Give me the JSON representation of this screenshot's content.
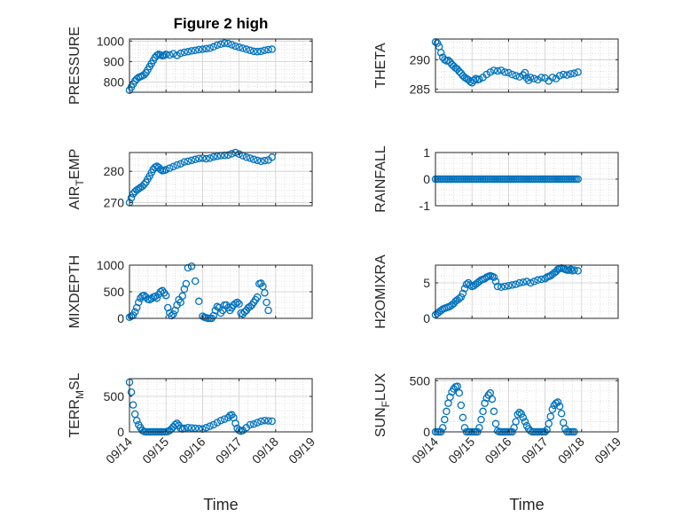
{
  "chart_data": [
    {
      "panel": 1,
      "type": "scatter",
      "title": "Figure 2 high",
      "ylabel": "PRESSURE",
      "xlabel": "",
      "ylim": [
        750,
        1010
      ],
      "yticks": [
        800,
        900,
        1000
      ],
      "xticks": [
        "09/14",
        "09/15",
        "09/16",
        "09/17",
        "09/18",
        "09/19"
      ],
      "show_xticklabels": false,
      "x": [
        0.0,
        0.05,
        0.1,
        0.15,
        0.2,
        0.25,
        0.3,
        0.35,
        0.4,
        0.45,
        0.5,
        0.55,
        0.6,
        0.65,
        0.7,
        0.75,
        0.8,
        0.85,
        0.9,
        0.95,
        1.0,
        1.1,
        1.2,
        1.3,
        1.4,
        1.5,
        1.6,
        1.7,
        1.8,
        1.9,
        2.0,
        2.1,
        2.2,
        2.3,
        2.4,
        2.5,
        2.6,
        2.7,
        2.8,
        2.9,
        3.0,
        3.1,
        3.2,
        3.3,
        3.4,
        3.5,
        3.6,
        3.7,
        3.8,
        3.9
      ],
      "y": [
        760,
        775,
        790,
        805,
        815,
        822,
        826,
        830,
        835,
        845,
        860,
        875,
        890,
        905,
        920,
        930,
        935,
        932,
        928,
        930,
        935,
        932,
        938,
        930,
        940,
        945,
        948,
        952,
        955,
        958,
        960,
        963,
        965,
        972,
        980,
        985,
        990,
        988,
        982,
        975,
        970,
        965,
        960,
        955,
        950,
        948,
        950,
        955,
        958,
        960
      ]
    },
    {
      "panel": 2,
      "type": "scatter",
      "title": "",
      "ylabel": "THETA",
      "xlabel": "",
      "ylim": [
        284.5,
        293.5
      ],
      "yticks": [
        285,
        290
      ],
      "xticks": [
        "09/14",
        "09/15",
        "09/16",
        "09/17",
        "09/18",
        "09/19"
      ],
      "show_xticklabels": false,
      "x": [
        0.0,
        0.05,
        0.1,
        0.15,
        0.2,
        0.25,
        0.3,
        0.35,
        0.4,
        0.45,
        0.5,
        0.55,
        0.6,
        0.65,
        0.7,
        0.75,
        0.8,
        0.85,
        0.9,
        0.95,
        1.0,
        1.05,
        1.1,
        1.15,
        1.2,
        1.3,
        1.4,
        1.5,
        1.6,
        1.7,
        1.8,
        1.9,
        2.0,
        2.1,
        2.2,
        2.3,
        2.4,
        2.45,
        2.5,
        2.55,
        2.6,
        2.7,
        2.8,
        2.9,
        3.0,
        3.1,
        3.2,
        3.3,
        3.4,
        3.5,
        3.6,
        3.7,
        3.8,
        3.9
      ],
      "y": [
        293,
        292.8,
        292.2,
        291.2,
        290.4,
        290,
        289.8,
        289.9,
        289.6,
        289.2,
        288.9,
        288.6,
        288.4,
        288,
        287.7,
        287.3,
        287,
        286.8,
        286.6,
        286.3,
        286.1,
        286.5,
        286.8,
        286.6,
        286.7,
        287,
        287.5,
        287.9,
        288.2,
        288.1,
        288.2,
        287.9,
        287.8,
        287.5,
        287.3,
        287.1,
        287.4,
        287.8,
        286.9,
        286.5,
        287,
        286.8,
        286.6,
        287,
        286.9,
        286.4,
        287,
        286.8,
        287.3,
        287.5,
        287.4,
        287.6,
        287.7,
        287.9
      ]
    },
    {
      "panel": 3,
      "type": "scatter",
      "title": "",
      "ylabel": "AIR_TEMP",
      "ylabel_parts": {
        "base": "AIR",
        "sub": "T",
        "rest": "EMP"
      },
      "xlabel": "",
      "ylim": [
        269,
        286
      ],
      "yticks": [
        270,
        280
      ],
      "xticks": [
        "09/14",
        "09/15",
        "09/16",
        "09/17",
        "09/18",
        "09/19"
      ],
      "show_xticklabels": false,
      "x": [
        0.0,
        0.05,
        0.1,
        0.15,
        0.2,
        0.25,
        0.3,
        0.35,
        0.4,
        0.45,
        0.5,
        0.55,
        0.6,
        0.65,
        0.7,
        0.75,
        0.8,
        0.85,
        0.9,
        0.95,
        1.0,
        1.1,
        1.2,
        1.3,
        1.4,
        1.5,
        1.6,
        1.7,
        1.8,
        1.9,
        2.0,
        2.1,
        2.2,
        2.3,
        2.4,
        2.5,
        2.6,
        2.7,
        2.8,
        2.9,
        3.0,
        3.1,
        3.2,
        3.3,
        3.4,
        3.5,
        3.6,
        3.7,
        3.8,
        3.9
      ],
      "y": [
        270,
        271.5,
        272.8,
        273.5,
        274,
        274.4,
        274.8,
        275.2,
        275.8,
        276.5,
        277.5,
        278.5,
        279.6,
        280.6,
        281.3,
        281.6,
        281.2,
        280.6,
        280.2,
        280.3,
        280.5,
        281,
        281.5,
        282,
        282.4,
        283,
        283.2,
        283.5,
        283.8,
        284.1,
        284.2,
        284,
        284.2,
        284.6,
        284.8,
        285,
        285.1,
        285.2,
        285.6,
        286,
        285.5,
        285,
        284.5,
        284.2,
        283.8,
        283.5,
        283.2,
        283.4,
        283.6,
        284.5
      ]
    },
    {
      "panel": 4,
      "type": "scatter",
      "title": "",
      "ylabel": "RAINFALL",
      "xlabel": "",
      "ylim": [
        -1,
        1
      ],
      "yticks": [
        -1,
        0,
        1
      ],
      "xticks": [
        "09/14",
        "09/15",
        "09/16",
        "09/17",
        "09/18",
        "09/19"
      ],
      "show_xticklabels": false,
      "x": [
        0.0,
        0.05,
        0.1,
        0.15,
        0.2,
        0.25,
        0.3,
        0.35,
        0.4,
        0.45,
        0.5,
        0.55,
        0.6,
        0.65,
        0.7,
        0.75,
        0.8,
        0.85,
        0.9,
        0.95,
        1.0,
        1.05,
        1.1,
        1.15,
        1.2,
        1.25,
        1.3,
        1.35,
        1.4,
        1.45,
        1.5,
        1.55,
        1.6,
        1.65,
        1.7,
        1.75,
        1.8,
        1.85,
        1.9,
        1.95,
        2.0,
        2.05,
        2.1,
        2.15,
        2.2,
        2.25,
        2.3,
        2.35,
        2.4,
        2.45,
        2.5,
        2.55,
        2.6,
        2.65,
        2.7,
        2.75,
        2.8,
        2.85,
        2.9,
        2.95,
        3.0,
        3.05,
        3.1,
        3.15,
        3.2,
        3.25,
        3.3,
        3.35,
        3.4,
        3.45,
        3.5,
        3.55,
        3.6,
        3.65,
        3.7,
        3.75,
        3.8,
        3.85,
        3.9
      ],
      "y": [
        0,
        0,
        0,
        0,
        0,
        0,
        0,
        0,
        0,
        0,
        0,
        0,
        0,
        0,
        0,
        0,
        0,
        0,
        0,
        0,
        0,
        0,
        0,
        0,
        0,
        0,
        0,
        0,
        0,
        0,
        0,
        0,
        0,
        0,
        0,
        0,
        0,
        0,
        0,
        0,
        0,
        0,
        0,
        0,
        0,
        0,
        0,
        0,
        0,
        0,
        0,
        0,
        0,
        0,
        0,
        0,
        0,
        0,
        0,
        0,
        0,
        0,
        0,
        0,
        0,
        0,
        0,
        0,
        0,
        0,
        0,
        0,
        0,
        0,
        0,
        0,
        0,
        0,
        0
      ]
    },
    {
      "panel": 5,
      "type": "scatter",
      "title": "",
      "ylabel": "MIXDEPTH",
      "xlabel": "",
      "ylim": [
        0,
        1000
      ],
      "yticks": [
        0,
        500,
        1000
      ],
      "xticks": [
        "09/14",
        "09/15",
        "09/16",
        "09/17",
        "09/18",
        "09/19"
      ],
      "show_xticklabels": false,
      "x": [
        0.0,
        0.05,
        0.1,
        0.15,
        0.2,
        0.25,
        0.3,
        0.35,
        0.4,
        0.45,
        0.5,
        0.55,
        0.6,
        0.65,
        0.7,
        0.75,
        0.8,
        0.85,
        0.9,
        0.95,
        1.0,
        1.05,
        1.1,
        1.15,
        1.2,
        1.25,
        1.3,
        1.35,
        1.4,
        1.45,
        1.5,
        1.55,
        1.6,
        1.7,
        1.8,
        1.9,
        2.0,
        2.05,
        2.1,
        2.15,
        2.2,
        2.25,
        2.3,
        2.35,
        2.4,
        2.45,
        2.5,
        2.55,
        2.6,
        2.65,
        2.7,
        2.75,
        2.8,
        2.85,
        2.9,
        2.95,
        3.0,
        3.05,
        3.1,
        3.15,
        3.2,
        3.25,
        3.3,
        3.35,
        3.4,
        3.45,
        3.5,
        3.55,
        3.6,
        3.65,
        3.7,
        3.75,
        3.8
      ],
      "y": [
        20,
        40,
        60,
        120,
        200,
        300,
        380,
        420,
        430,
        400,
        360,
        350,
        370,
        400,
        410,
        380,
        450,
        500,
        520,
        480,
        430,
        200,
        100,
        50,
        80,
        150,
        250,
        350,
        300,
        420,
        550,
        650,
        950,
        980,
        700,
        320,
        40,
        20,
        10,
        0,
        0,
        0,
        50,
        150,
        220,
        200,
        100,
        150,
        250,
        250,
        200,
        150,
        200,
        250,
        280,
        300,
        270,
        100,
        80,
        120,
        150,
        200,
        220,
        250,
        300,
        350,
        400,
        650,
        660,
        600,
        480,
        300,
        150
      ]
    },
    {
      "panel": 6,
      "type": "scatter",
      "title": "",
      "ylabel": "H2OMIXRA",
      "xlabel": "",
      "ylim": [
        0,
        7.5
      ],
      "yticks": [
        0,
        5
      ],
      "xticks": [
        "09/14",
        "09/15",
        "09/16",
        "09/17",
        "09/18",
        "09/19"
      ],
      "show_xticklabels": false,
      "x": [
        0.0,
        0.05,
        0.1,
        0.15,
        0.2,
        0.25,
        0.3,
        0.35,
        0.4,
        0.45,
        0.5,
        0.55,
        0.6,
        0.65,
        0.7,
        0.75,
        0.8,
        0.85,
        0.9,
        0.95,
        1.0,
        1.05,
        1.1,
        1.15,
        1.2,
        1.25,
        1.3,
        1.35,
        1.4,
        1.45,
        1.5,
        1.55,
        1.6,
        1.65,
        1.7,
        1.8,
        1.9,
        2.0,
        2.1,
        2.2,
        2.3,
        2.4,
        2.5,
        2.6,
        2.7,
        2.8,
        2.9,
        3.0,
        3.05,
        3.1,
        3.15,
        3.2,
        3.25,
        3.3,
        3.35,
        3.4,
        3.45,
        3.5,
        3.55,
        3.6,
        3.65,
        3.7,
        3.75,
        3.8,
        3.9
      ],
      "y": [
        0.5,
        0.7,
        0.9,
        1.1,
        1.3,
        1.4,
        1.5,
        1.6,
        1.7,
        1.9,
        2.1,
        2.4,
        2.6,
        2.8,
        3.0,
        3.5,
        4.2,
        4.8,
        5.0,
        4.7,
        4.5,
        4.6,
        4.8,
        5.0,
        5.2,
        5.4,
        5.5,
        5.6,
        5.8,
        5.9,
        6.0,
        5.9,
        5.8,
        5.2,
        4.5,
        4.4,
        4.5,
        4.6,
        4.7,
        4.8,
        5.0,
        5.1,
        5.2,
        5.0,
        5.2,
        5.4,
        5.5,
        5.6,
        5.8,
        5.9,
        6.0,
        6.2,
        6.4,
        6.6,
        6.9,
        7.0,
        7.1,
        7.0,
        6.9,
        6.8,
        6.8,
        6.9,
        6.7,
        6.8,
        6.7
      ]
    },
    {
      "panel": 7,
      "type": "scatter",
      "title": "",
      "ylabel": "TERR_MSL",
      "ylabel_parts": {
        "base": "TERR",
        "sub": "M",
        "rest": "SL"
      },
      "xlabel": "Time",
      "ylim": [
        0,
        750
      ],
      "yticks": [
        0,
        500
      ],
      "xticks": [
        "09/14",
        "09/15",
        "09/16",
        "09/17",
        "09/18",
        "09/19"
      ],
      "show_xticklabels": true,
      "x": [
        0.0,
        0.05,
        0.1,
        0.15,
        0.2,
        0.25,
        0.3,
        0.35,
        0.4,
        0.45,
        0.5,
        0.55,
        0.6,
        0.65,
        0.7,
        0.75,
        0.8,
        0.85,
        0.9,
        0.95,
        1.0,
        1.05,
        1.1,
        1.15,
        1.2,
        1.25,
        1.3,
        1.35,
        1.4,
        1.45,
        1.5,
        1.6,
        1.7,
        1.8,
        1.9,
        2.0,
        2.1,
        2.2,
        2.3,
        2.4,
        2.5,
        2.6,
        2.7,
        2.75,
        2.8,
        2.85,
        2.9,
        2.95,
        3.0,
        3.05,
        3.1,
        3.2,
        3.3,
        3.4,
        3.5,
        3.6,
        3.7,
        3.8,
        3.9
      ],
      "y": [
        700,
        560,
        380,
        250,
        160,
        100,
        60,
        20,
        5,
        0,
        0,
        0,
        0,
        0,
        0,
        0,
        0,
        0,
        0,
        0,
        0,
        5,
        20,
        40,
        70,
        100,
        120,
        90,
        50,
        40,
        50,
        60,
        55,
        50,
        45,
        40,
        60,
        80,
        100,
        130,
        160,
        180,
        200,
        230,
        240,
        200,
        120,
        50,
        20,
        10,
        20,
        60,
        100,
        110,
        130,
        150,
        160,
        155,
        150
      ]
    },
    {
      "panel": 8,
      "type": "scatter",
      "title": "",
      "ylabel": "SUN_FLUX",
      "ylabel_parts": {
        "base": "SUN",
        "sub": "F",
        "rest": "LUX"
      },
      "xlabel": "Time",
      "ylim": [
        0,
        520
      ],
      "yticks": [
        0,
        500
      ],
      "xticks": [
        "09/14",
        "09/15",
        "09/16",
        "09/17",
        "09/18",
        "09/19"
      ],
      "show_xticklabels": true,
      "x": [
        0.0,
        0.05,
        0.1,
        0.15,
        0.2,
        0.25,
        0.3,
        0.35,
        0.4,
        0.45,
        0.5,
        0.55,
        0.6,
        0.65,
        0.7,
        0.75,
        0.8,
        0.85,
        0.9,
        0.95,
        1.0,
        1.05,
        1.1,
        1.15,
        1.2,
        1.25,
        1.3,
        1.35,
        1.4,
        1.45,
        1.5,
        1.55,
        1.6,
        1.65,
        1.7,
        1.75,
        1.8,
        1.85,
        1.9,
        1.95,
        2.0,
        2.05,
        2.1,
        2.15,
        2.2,
        2.25,
        2.3,
        2.35,
        2.4,
        2.45,
        2.5,
        2.55,
        2.6,
        2.65,
        2.7,
        2.75,
        2.8,
        2.85,
        2.9,
        2.95,
        3.0,
        3.05,
        3.1,
        3.15,
        3.2,
        3.25,
        3.3,
        3.35,
        3.4,
        3.45,
        3.5,
        3.55,
        3.6,
        3.65,
        3.7,
        3.75,
        3.8
      ],
      "y": [
        0,
        0,
        0,
        0,
        40,
        120,
        200,
        280,
        340,
        390,
        420,
        440,
        445,
        380,
        260,
        140,
        40,
        0,
        0,
        0,
        0,
        0,
        0,
        0,
        40,
        120,
        200,
        280,
        330,
        360,
        380,
        320,
        200,
        80,
        10,
        0,
        0,
        0,
        0,
        0,
        0,
        0,
        0,
        40,
        100,
        170,
        190,
        175,
        140,
        100,
        60,
        30,
        10,
        0,
        0,
        0,
        0,
        0,
        0,
        0,
        0,
        20,
        80,
        150,
        220,
        260,
        280,
        290,
        250,
        180,
        90,
        30,
        0,
        0,
        0,
        0,
        0
      ]
    }
  ]
}
